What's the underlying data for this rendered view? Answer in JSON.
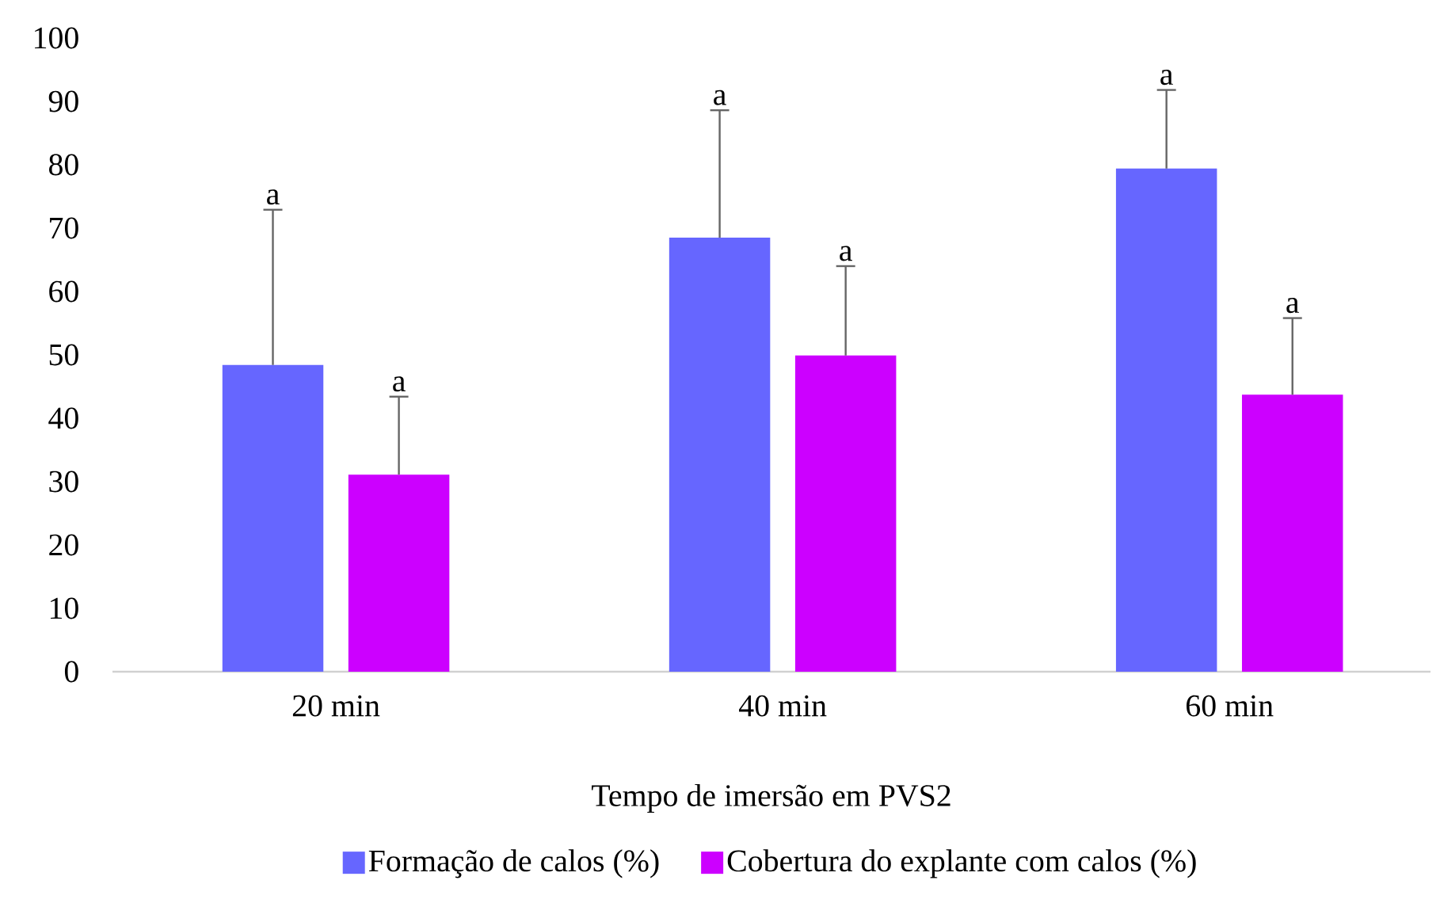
{
  "chart_data": {
    "type": "bar",
    "xlabel": "Tempo de imersão em PVS2",
    "categories": [
      "20 min",
      "40 min",
      "60 min"
    ],
    "series": [
      {
        "name": "Formação de calos (%)",
        "color": "#6666ff",
        "values": [
          48.4,
          68.5,
          79.4
        ],
        "errors": [
          [
            48.4,
            72.9
          ],
          [
            68.5,
            88.6
          ],
          [
            79.4,
            91.8
          ]
        ]
      },
      {
        "name": "Cobertura do explante com calos (%)",
        "color": "#cc00ff",
        "values": [
          31.1,
          49.9,
          43.7
        ],
        "errors": [
          [
            31.1,
            43.4
          ],
          [
            49.9,
            64.0
          ],
          [
            43.7,
            55.8
          ]
        ]
      }
    ],
    "ylim": [
      0,
      100
    ],
    "yticks": [
      0,
      10,
      20,
      30,
      40,
      50,
      60,
      70,
      80,
      90,
      100
    ],
    "legend": "bottom",
    "annotations": [
      "a",
      "a",
      "a",
      "a",
      "a",
      "a"
    ]
  }
}
